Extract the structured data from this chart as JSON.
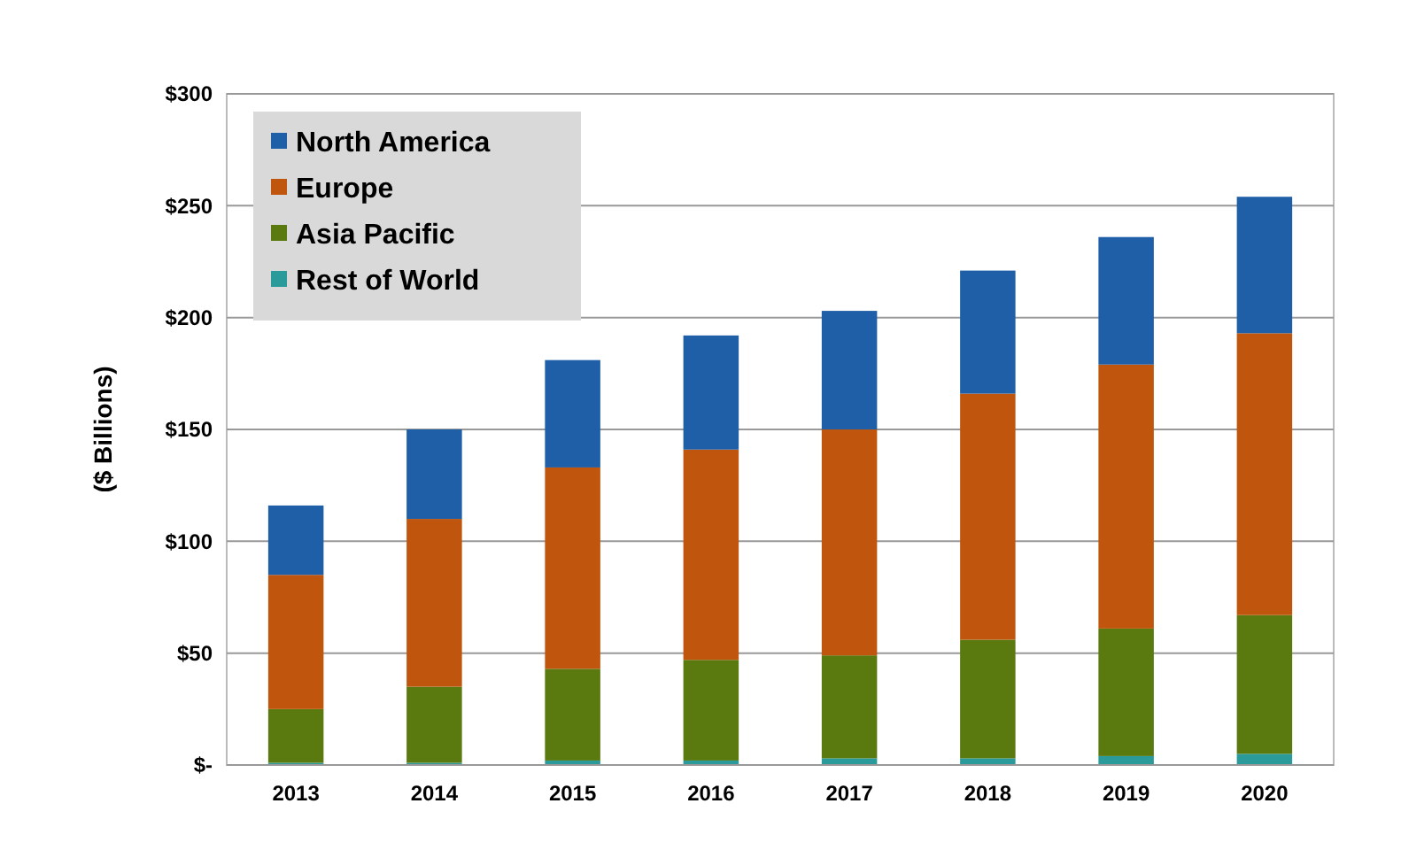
{
  "chart_data": {
    "type": "bar",
    "stacked": true,
    "ylabel": "($ Billions)",
    "categories": [
      "2013",
      "2014",
      "2015",
      "2016",
      "2017",
      "2018",
      "2019",
      "2020"
    ],
    "series": [
      {
        "name": "Rest of World",
        "color": "#2a9a9a",
        "values": [
          1,
          1,
          2,
          2,
          3,
          3,
          4,
          5
        ]
      },
      {
        "name": "Asia Pacific",
        "color": "#5a7a10",
        "values": [
          24,
          34,
          41,
          45,
          46,
          53,
          57,
          62
        ]
      },
      {
        "name": "Europe",
        "color": "#c0560d",
        "values": [
          60,
          75,
          90,
          94,
          101,
          110,
          118,
          126
        ]
      },
      {
        "name": "North America",
        "color": "#1f5fa8",
        "values": [
          31,
          40,
          48,
          51,
          53,
          55,
          57,
          61
        ]
      }
    ],
    "ylim": [
      0,
      300
    ],
    "yticks": [
      {
        "value": 0,
        "label": "$-"
      },
      {
        "value": 50,
        "label": "$50"
      },
      {
        "value": 100,
        "label": "$100"
      },
      {
        "value": 150,
        "label": "$150"
      },
      {
        "value": 200,
        "label": "$200"
      },
      {
        "value": 250,
        "label": "$250"
      },
      {
        "value": 300,
        "label": "$300"
      }
    ],
    "grid": "y",
    "legend": "top left"
  }
}
